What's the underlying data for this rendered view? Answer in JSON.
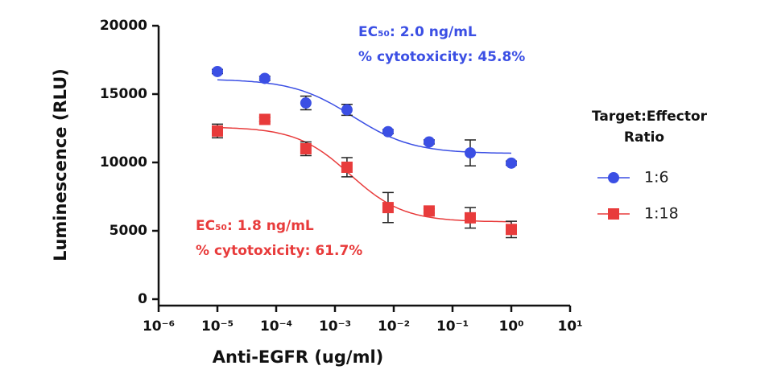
{
  "chart_data": {
    "type": "dose-response",
    "x_label": "Anti-EGFR (ug/ml)",
    "y_label": "Luminescence (RLU)",
    "legend_title": "Target:Effector Ratio",
    "xscale": "log",
    "xlim": [
      1e-06,
      10
    ],
    "xticks": [
      {
        "value": 1e-06,
        "label": "10⁻⁶"
      },
      {
        "value": 1e-05,
        "label": "10⁻⁵"
      },
      {
        "value": 0.0001,
        "label": "10⁻⁴"
      },
      {
        "value": 0.001,
        "label": "10⁻³"
      },
      {
        "value": 0.01,
        "label": "10⁻²"
      },
      {
        "value": 0.1,
        "label": "10⁻¹"
      },
      {
        "value": 1,
        "label": "10⁰"
      },
      {
        "value": 10,
        "label": "10¹"
      }
    ],
    "ylim": [
      0,
      20000
    ],
    "yticks": [
      0,
      5000,
      10000,
      15000,
      20000
    ],
    "x": [
      1e-05,
      6.4e-05,
      0.00032,
      0.0016,
      0.008,
      0.04,
      0.2,
      1
    ],
    "series": [
      {
        "name": "1:6",
        "color": "#3b4fe4",
        "marker": "circle",
        "values": [
          16650,
          16150,
          14350,
          13850,
          12250,
          11500,
          10700,
          9950
        ],
        "errors": [
          150,
          150,
          500,
          400,
          150,
          150,
          950,
          150
        ],
        "fit": {
          "top": 16100,
          "bottom": 10650,
          "ec50": 0.002,
          "hill": 0.85
        }
      },
      {
        "name": "1:18",
        "color": "#e83b3b",
        "marker": "square",
        "values": [
          12300,
          13150,
          11000,
          9650,
          6700,
          6450,
          5950,
          5100
        ],
        "errors": [
          500,
          150,
          500,
          700,
          1100,
          150,
          750,
          600
        ],
        "fit": {
          "top": 12600,
          "bottom": 5650,
          "ec50": 0.0018,
          "hill": 0.95
        }
      }
    ],
    "annotations": [
      {
        "lines": [
          "EC₅₀: 2.0 ng/mL",
          "% cytotoxicity: 45.8%"
        ],
        "color": "#3b4fe4"
      },
      {
        "lines": [
          "EC₅₀: 1.8 ng/mL",
          "% cytotoxicity: 61.7%"
        ],
        "color": "#e83b3b"
      }
    ]
  }
}
